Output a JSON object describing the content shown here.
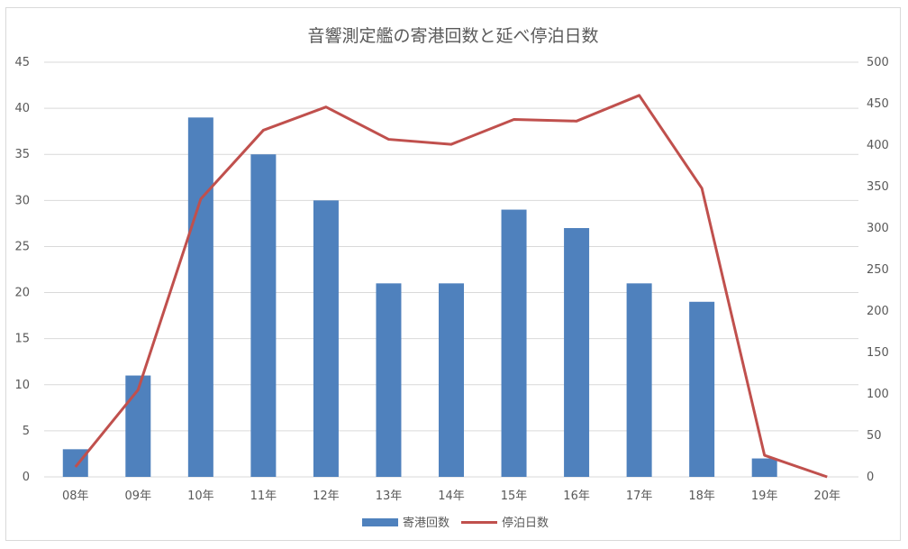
{
  "colors": {
    "bar": "#4f81bd",
    "line": "#c0504d"
  },
  "chart_data": {
    "type": "bar",
    "title": "音響測定艦の寄港回数と延べ停泊日数",
    "categories": [
      "08年",
      "09年",
      "10年",
      "11年",
      "12年",
      "13年",
      "14年",
      "15年",
      "16年",
      "17年",
      "18年",
      "19年",
      "20年"
    ],
    "series": [
      {
        "name": "寄港回数",
        "type": "bar",
        "axis": "left",
        "values": [
          3,
          11,
          39,
          35,
          30,
          21,
          21,
          29,
          27,
          21,
          19,
          2,
          0
        ]
      },
      {
        "name": "停泊日数",
        "type": "line",
        "axis": "right",
        "values": [
          12,
          105,
          335,
          418,
          446,
          407,
          401,
          431,
          429,
          460,
          348,
          26,
          0
        ]
      }
    ],
    "y_left": {
      "min": 0,
      "max": 45,
      "ticks": [
        "0",
        "5",
        "10",
        "15",
        "20",
        "25",
        "30",
        "35",
        "40",
        "45"
      ]
    },
    "y_right": {
      "min": 0,
      "max": 500,
      "ticks": [
        "0",
        "50",
        "100",
        "150",
        "200",
        "250",
        "300",
        "350",
        "400",
        "450",
        "500"
      ]
    },
    "grid": true,
    "legend_position": "bottom"
  }
}
